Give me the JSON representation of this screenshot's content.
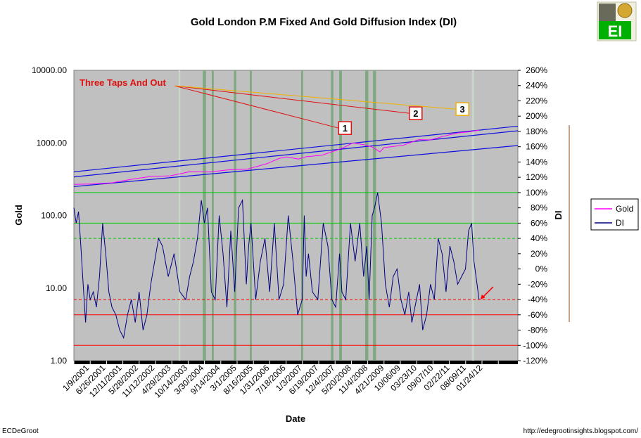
{
  "chart_data": {
    "type": "line",
    "title": "Gold London P.M Fixed And Gold Diffusion Index (DI)",
    "xlabel": "Date",
    "ylabel_left": "Gold",
    "ylabel_right": "DI",
    "y_left_scale": "log",
    "y_left_ticks": [
      "10000.00",
      "1000.00",
      "100.00",
      "10.00",
      "1.00"
    ],
    "y_left_range": [
      1,
      10000
    ],
    "y_right_ticks": [
      "260%",
      "240%",
      "220%",
      "200%",
      "180%",
      "160%",
      "140%",
      "120%",
      "100%",
      "80%",
      "60%",
      "40%",
      "20%",
      "0%",
      "-20%",
      "-40%",
      "-60%",
      "-80%",
      "-100%",
      "-120%"
    ],
    "y_right_range": [
      -120,
      260
    ],
    "x_ticks": [
      "1/9/2001",
      "6/26/2001",
      "12/11/2001",
      "5/28/2002",
      "11/12/2002",
      "4/29/2003",
      "10/14/2003",
      "3/30/2004",
      "9/14/2004",
      "3/1/2005",
      "8/16/2005",
      "1/31/2006",
      "7/18/2006",
      "1/3/2007",
      "6/19/2007",
      "12/4/2007",
      "5/20/2008",
      "11/4/2008",
      "4/21/2009",
      "10/06/09",
      "03/23/10",
      "09/07/10",
      "02/22/11",
      "08/09/11",
      "01/24/12"
    ],
    "x_range_years": [
      2001.02,
      2012.45
    ],
    "legend": {
      "placement": "right",
      "entries": [
        {
          "name": "Gold",
          "color": "#ff00ff"
        },
        {
          "name": "DI",
          "color": "#000080"
        }
      ]
    },
    "reference_lines_di": [
      {
        "value": 100,
        "color": "#00cc00",
        "style": "solid"
      },
      {
        "value": 60,
        "color": "#00cc00",
        "style": "solid"
      },
      {
        "value": 40,
        "color": "#00cc00",
        "style": "dashed"
      },
      {
        "value": -40,
        "color": "#ff0000",
        "style": "dashed"
      },
      {
        "value": -60,
        "color": "#ff0000",
        "style": "solid"
      },
      {
        "value": -100,
        "color": "#ff0000",
        "style": "solid"
      }
    ],
    "shaded_periods": [
      {
        "from": 2003.72,
        "to": 2003.76,
        "color": "#c9d7c9"
      },
      {
        "from": 2004.34,
        "to": 2004.42,
        "color": "#80a880"
      },
      {
        "from": 2004.57,
        "to": 2004.62,
        "color": "#80a880"
      },
      {
        "from": 2005.14,
        "to": 2005.2,
        "color": "#80a880"
      },
      {
        "from": 2005.55,
        "to": 2005.6,
        "color": "#80a880"
      },
      {
        "from": 2006.87,
        "to": 2006.92,
        "color": "#80a880"
      },
      {
        "from": 2007.64,
        "to": 2007.7,
        "color": "#80a880"
      },
      {
        "from": 2007.85,
        "to": 2007.92,
        "color": "#80a880"
      },
      {
        "from": 2008.52,
        "to": 2008.6,
        "color": "#80a880"
      },
      {
        "from": 2008.72,
        "to": 2008.8,
        "color": "#80a880"
      },
      {
        "from": 2011.27,
        "to": 2011.32,
        "color": "#c9d7c9"
      }
    ],
    "trend_lines": [
      {
        "from": [
          2001.02,
          400
        ],
        "to": [
          2012.45,
          1700
        ]
      },
      {
        "from": [
          2001.02,
          340
        ],
        "to": [
          2012.45,
          1470
        ]
      },
      {
        "from": [
          2001.02,
          250
        ],
        "to": [
          2012.45,
          920
        ]
      }
    ],
    "annotation": {
      "text": "Three Taps And Out",
      "color": "#e01010"
    },
    "tap_markers": [
      {
        "label": "1",
        "x": 2008.0,
        "y": 1600,
        "border": "#e01010"
      },
      {
        "label": "2",
        "x": 2009.82,
        "y": 2560,
        "border": "#e01010"
      },
      {
        "label": "3",
        "x": 2011.02,
        "y": 2920,
        "border": "#f0b000"
      }
    ],
    "series": [
      {
        "name": "Gold",
        "axis": "left",
        "color": "#ff00ff",
        "x": [
          2001.02,
          2001.5,
          2002.0,
          2002.5,
          2003.0,
          2003.5,
          2004.0,
          2004.5,
          2005.0,
          2005.5,
          2006.0,
          2006.3,
          2006.5,
          2006.8,
          2007.0,
          2007.4,
          2007.8,
          2008.0,
          2008.2,
          2008.5,
          2008.7,
          2008.9,
          2009.0,
          2009.5,
          2009.9,
          2010.2,
          2010.5,
          2010.9,
          2011.2,
          2011.45
        ],
        "values": [
          268,
          272,
          282,
          315,
          345,
          352,
          400,
          398,
          425,
          437,
          520,
          610,
          640,
          600,
          645,
          675,
          800,
          880,
          1000,
          940,
          880,
          750,
          860,
          930,
          1110,
          1100,
          1220,
          1370,
          1420,
          1500
        ]
      },
      {
        "name": "DI",
        "axis": "right",
        "color": "#000080",
        "x": [
          2001.02,
          2001.08,
          2001.14,
          2001.2,
          2001.26,
          2001.32,
          2001.38,
          2001.44,
          2001.52,
          2001.6,
          2001.68,
          2001.76,
          2001.84,
          2001.92,
          2002.0,
          2002.1,
          2002.2,
          2002.3,
          2002.4,
          2002.5,
          2002.6,
          2002.7,
          2002.8,
          2002.9,
          2003.0,
          2003.1,
          2003.2,
          2003.3,
          2003.45,
          2003.6,
          2003.75,
          2003.9,
          2004.0,
          2004.1,
          2004.2,
          2004.3,
          2004.38,
          2004.46,
          2004.56,
          2004.66,
          2004.76,
          2004.86,
          2004.96,
          2005.06,
          2005.16,
          2005.26,
          2005.36,
          2005.46,
          2005.52,
          2005.58,
          2005.7,
          2005.82,
          2005.94,
          2006.06,
          2006.18,
          2006.3,
          2006.42,
          2006.54,
          2006.66,
          2006.78,
          2006.9,
          2006.95,
          2007.0,
          2007.06,
          2007.16,
          2007.3,
          2007.44,
          2007.56,
          2007.66,
          2007.76,
          2007.86,
          2007.92,
          2008.02,
          2008.14,
          2008.26,
          2008.38,
          2008.48,
          2008.56,
          2008.62,
          2008.7,
          2008.76,
          2008.84,
          2008.94,
          2009.04,
          2009.14,
          2009.24,
          2009.34,
          2009.44,
          2009.54,
          2009.64,
          2009.72,
          2009.8,
          2009.92,
          2010.0,
          2010.1,
          2010.2,
          2010.3,
          2010.4,
          2010.5,
          2010.6,
          2010.7,
          2010.8,
          2010.9,
          2011.0,
          2011.1,
          2011.18,
          2011.26,
          2011.32,
          2011.4,
          2011.45
        ],
        "values": [
          80,
          60,
          75,
          30,
          -20,
          -70,
          -20,
          -40,
          -30,
          -50,
          -10,
          60,
          20,
          -30,
          -50,
          -60,
          -80,
          -90,
          -60,
          -40,
          -70,
          -30,
          -80,
          -60,
          -20,
          10,
          40,
          30,
          -10,
          20,
          -30,
          -40,
          -10,
          10,
          40,
          90,
          60,
          80,
          -30,
          -40,
          70,
          20,
          -50,
          50,
          -30,
          80,
          90,
          -20,
          30,
          60,
          -40,
          10,
          40,
          -30,
          60,
          -40,
          -20,
          70,
          10,
          -60,
          -40,
          70,
          -10,
          20,
          -30,
          -40,
          60,
          30,
          -40,
          -50,
          20,
          -30,
          -40,
          60,
          10,
          60,
          -10,
          30,
          -40,
          70,
          80,
          100,
          60,
          -20,
          -50,
          -10,
          0,
          -40,
          -60,
          -30,
          -70,
          -50,
          -20,
          -80,
          -60,
          -20,
          -40,
          40,
          20,
          -30,
          30,
          10,
          -20,
          -10,
          0,
          50,
          60,
          10,
          -20,
          -40
        ]
      }
    ]
  },
  "branding": {
    "logo_text": "EI"
  },
  "footer": {
    "left": "ECDeGroot",
    "right": "http://edegrootinsights.blogspot.com/"
  }
}
